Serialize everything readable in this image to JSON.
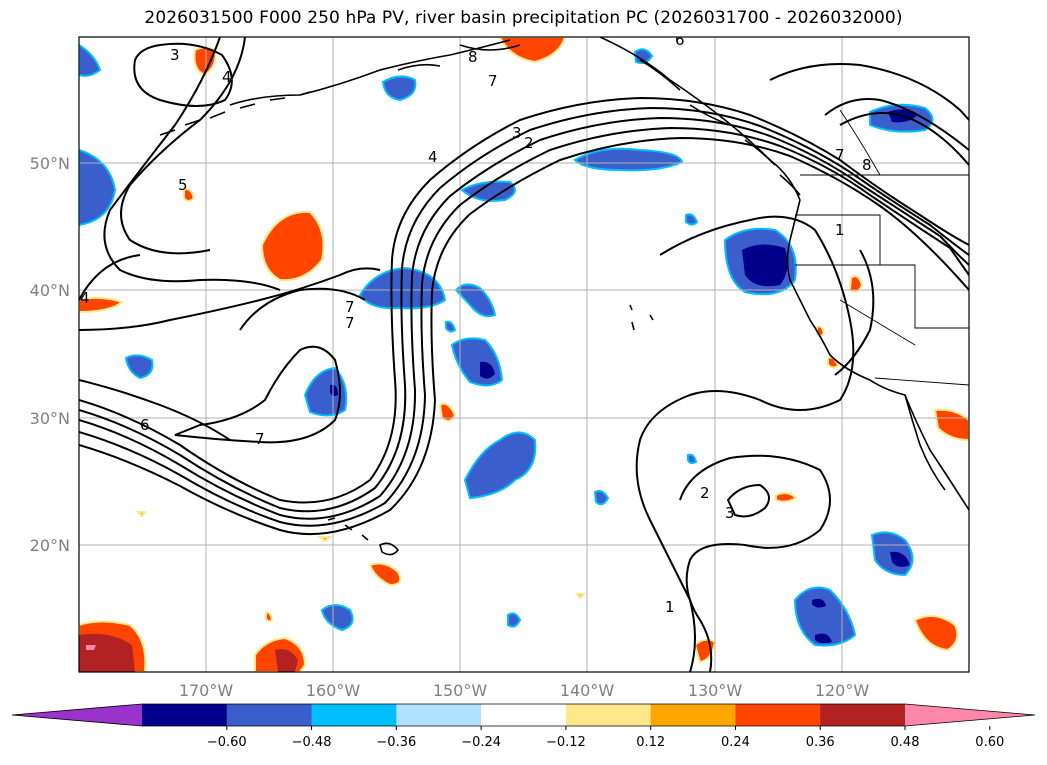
{
  "title": "2026031500 F000 250 hPa PV, river basin precipitation PC (2026031700 - 2026032000)",
  "map": {
    "lon_min": -180,
    "lon_max": -110,
    "lat_min": 10,
    "lat_max": 60,
    "lat_labels": [
      "50°N",
      "40°N",
      "30°N",
      "20°N"
    ],
    "lat_values": [
      50,
      40,
      30,
      20
    ],
    "lon_labels": [
      "170°W",
      "160°W",
      "150°W",
      "140°W",
      "130°W",
      "120°W"
    ],
    "lon_values": [
      -170,
      -160,
      -150,
      -140,
      -130,
      -120
    ],
    "contour_labels": [
      "3",
      "4",
      "8",
      "7",
      "3",
      "2",
      "4",
      "5",
      "4",
      "7",
      "7",
      "6",
      "7",
      "2",
      "3",
      "1",
      "7",
      "8",
      "1",
      "6"
    ]
  },
  "colorbar": {
    "tick_labels": [
      "−0.60",
      "−0.48",
      "−0.36",
      "−0.24",
      "−0.12",
      "0.12",
      "0.24",
      "0.36",
      "0.48",
      "0.60"
    ],
    "levels": [
      -0.6,
      -0.48,
      -0.36,
      -0.24,
      -0.12,
      0.12,
      0.24,
      0.36,
      0.48,
      0.6
    ],
    "colors": [
      "#9933cc",
      "#00008b",
      "#3a5fcd",
      "#00bfff",
      "#b0e2ff",
      "#ffffff",
      "#ffe88c",
      "#ffa500",
      "#ff4500",
      "#b22222",
      "#ff88aa"
    ]
  }
}
